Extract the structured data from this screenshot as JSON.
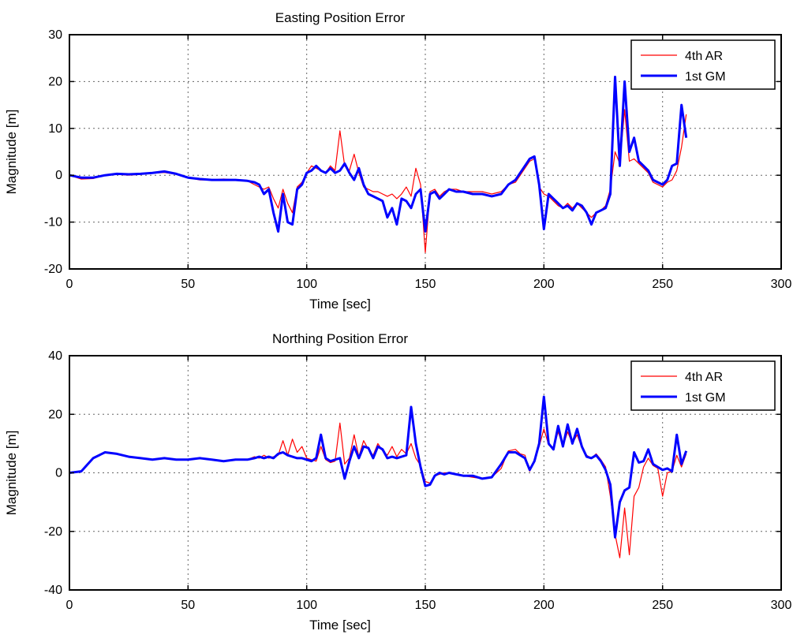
{
  "figure": {
    "background": "#ffffff"
  },
  "chart_data": [
    {
      "type": "line",
      "title": "Easting Position Error",
      "xlabel": "Time [sec]",
      "ylabel": "Magnitude [m]",
      "xlim": [
        0,
        300
      ],
      "ylim": [
        -20,
        30
      ],
      "xticks": [
        0,
        50,
        100,
        150,
        200,
        250,
        300
      ],
      "yticks": [
        -20,
        -10,
        0,
        10,
        20,
        30
      ],
      "grid": true,
      "legend_position": "top-right",
      "x": [
        0,
        5,
        10,
        15,
        20,
        25,
        30,
        35,
        40,
        45,
        50,
        55,
        60,
        65,
        70,
        75,
        78,
        80,
        82,
        84,
        86,
        88,
        90,
        92,
        94,
        96,
        98,
        100,
        102,
        104,
        106,
        108,
        110,
        112,
        114,
        116,
        118,
        120,
        122,
        124,
        126,
        128,
        130,
        132,
        134,
        136,
        138,
        140,
        142,
        144,
        146,
        148,
        150,
        152,
        154,
        156,
        158,
        160,
        163,
        166,
        170,
        174,
        178,
        182,
        185,
        188,
        190,
        192,
        194,
        196,
        198,
        200,
        202,
        204,
        206,
        208,
        210,
        212,
        214,
        216,
        218,
        220,
        222,
        224,
        226,
        228,
        230,
        232,
        234,
        236,
        238,
        240,
        242,
        244,
        246,
        248,
        250,
        252,
        254,
        256,
        258,
        260
      ],
      "series": [
        {
          "name": "4th AR",
          "color": "#ff0000",
          "width": 1.2,
          "values": [
            0,
            -0.8,
            -0.7,
            0,
            0.2,
            0,
            0.2,
            0.4,
            0.6,
            0.2,
            -0.5,
            -1,
            -1,
            -0.8,
            -1,
            -1.2,
            -2,
            -2.5,
            -3,
            -2.5,
            -5,
            -7,
            -3,
            -6,
            -8,
            -2.5,
            -1.5,
            0.5,
            2,
            1.5,
            1,
            0.5,
            2,
            1,
            9.5,
            2,
            1,
            4.5,
            0.5,
            -2.5,
            -3,
            -3.5,
            -3.5,
            -4,
            -4.5,
            -4,
            -5,
            -4,
            -2.5,
            -4.5,
            1.5,
            -2,
            -16.5,
            -3.5,
            -3,
            -4.5,
            -3.5,
            -3,
            -3,
            -3.5,
            -3.5,
            -3.5,
            -4,
            -3.5,
            -2,
            -1.5,
            0,
            1.5,
            3,
            3.5,
            -2.5,
            -4,
            -4.5,
            -5.5,
            -6.5,
            -7,
            -6,
            -7,
            -6,
            -7,
            -8,
            -9,
            -8,
            -7.5,
            -6.5,
            -3,
            5,
            2.5,
            14,
            3,
            3.5,
            2.5,
            1.5,
            0.5,
            -1.5,
            -2,
            -2.5,
            -1.5,
            -1,
            1,
            6,
            13
          ]
        },
        {
          "name": "1st GM",
          "color": "#0000ff",
          "width": 3,
          "values": [
            0,
            -0.5,
            -0.5,
            0,
            0.3,
            0.2,
            0.3,
            0.5,
            0.8,
            0.3,
            -0.5,
            -0.8,
            -1,
            -1,
            -1,
            -1.2,
            -1.5,
            -2,
            -4,
            -3,
            -8,
            -12,
            -4,
            -10,
            -10.5,
            -3,
            -2,
            0.5,
            1,
            2,
            1,
            0.5,
            1.5,
            0.5,
            1,
            2.5,
            0.5,
            -1,
            1.5,
            -2,
            -4,
            -4.5,
            -5,
            -5.5,
            -9,
            -7,
            -10.5,
            -5,
            -5.5,
            -7,
            -4,
            -3,
            -12,
            -4,
            -3.5,
            -5,
            -4,
            -3,
            -3.5,
            -3.5,
            -4,
            -4,
            -4.5,
            -4,
            -2,
            -1,
            0.5,
            2,
            3.5,
            4,
            -2,
            -11.5,
            -4,
            -5,
            -6,
            -7,
            -6.5,
            -7.5,
            -6,
            -6.5,
            -8,
            -10.5,
            -8,
            -7.5,
            -7,
            -4,
            21,
            2,
            20,
            5,
            8,
            3,
            2,
            1,
            -1,
            -1.5,
            -2,
            -1,
            2,
            2.5,
            15,
            8
          ]
        }
      ]
    },
    {
      "type": "line",
      "title": "Northing Position Error",
      "xlabel": "Time [sec]",
      "ylabel": "Magnitude [m]",
      "xlim": [
        0,
        300
      ],
      "ylim": [
        -40,
        40
      ],
      "xticks": [
        0,
        50,
        100,
        150,
        200,
        250,
        300
      ],
      "yticks": [
        -40,
        -20,
        0,
        20,
        40
      ],
      "grid": true,
      "legend_position": "top-right",
      "x": [
        0,
        5,
        10,
        15,
        20,
        25,
        30,
        35,
        40,
        45,
        50,
        55,
        60,
        65,
        70,
        75,
        78,
        80,
        82,
        84,
        86,
        88,
        90,
        92,
        94,
        96,
        98,
        100,
        102,
        104,
        106,
        108,
        110,
        112,
        114,
        116,
        118,
        120,
        122,
        124,
        126,
        128,
        130,
        132,
        134,
        136,
        138,
        140,
        142,
        144,
        146,
        148,
        150,
        152,
        154,
        156,
        158,
        160,
        163,
        166,
        170,
        174,
        178,
        182,
        185,
        188,
        190,
        192,
        194,
        196,
        198,
        200,
        202,
        204,
        206,
        208,
        210,
        212,
        214,
        216,
        218,
        220,
        222,
        224,
        226,
        228,
        230,
        232,
        234,
        236,
        238,
        240,
        242,
        244,
        246,
        248,
        250,
        252,
        254,
        256,
        258,
        260
      ],
      "series": [
        {
          "name": "4th AR",
          "color": "#ff0000",
          "width": 1.2,
          "values": [
            0,
            0.5,
            5,
            7,
            6.5,
            5.5,
            5,
            4.5,
            5,
            4.5,
            4.5,
            5,
            4.5,
            4,
            4.5,
            4.5,
            5.5,
            5,
            6,
            5,
            5.5,
            6,
            11,
            6,
            11.5,
            7,
            9,
            5,
            4.5,
            4,
            9,
            4.5,
            3.5,
            4,
            17,
            3,
            5,
            13,
            5.5,
            11,
            8,
            6,
            10,
            7.5,
            6,
            9,
            5.5,
            8,
            6.5,
            10,
            5,
            2.5,
            -3,
            -3.5,
            -1,
            -0.5,
            0,
            0,
            -0.5,
            -1,
            -1.5,
            -2,
            -1.5,
            1.5,
            7.5,
            8,
            6.5,
            6,
            0.5,
            4.5,
            9,
            15,
            9.5,
            8.5,
            14,
            9,
            14,
            10,
            13,
            8.5,
            6,
            5,
            6.5,
            4.5,
            2,
            -8,
            -21,
            -29,
            -12,
            -28,
            -8,
            -5,
            2,
            5,
            2.5,
            1.5,
            -8,
            0,
            0.5,
            6,
            2,
            6.5
          ]
        },
        {
          "name": "1st GM",
          "color": "#0000ff",
          "width": 3,
          "values": [
            0,
            0.5,
            5,
            7,
            6.5,
            5.5,
            5,
            4.5,
            5,
            4.5,
            4.5,
            5,
            4.5,
            4,
            4.5,
            4.5,
            5,
            5.5,
            5,
            5.5,
            5,
            6.5,
            7,
            6,
            5.5,
            5,
            5,
            4.5,
            4,
            5,
            13,
            5,
            4,
            4.5,
            5,
            -2,
            4,
            9,
            5,
            9,
            8.5,
            5,
            9,
            8,
            5,
            5.5,
            5,
            5.5,
            6,
            22.5,
            10,
            2,
            -4.5,
            -4,
            -1,
            0,
            -0.5,
            0,
            -0.5,
            -1,
            -1,
            -2,
            -1.5,
            3,
            7,
            7,
            6,
            5,
            1,
            4,
            10,
            26,
            10,
            8,
            16,
            9,
            16.5,
            10,
            15,
            9,
            5.5,
            5,
            6,
            4,
            1,
            -4,
            -22,
            -10,
            -6,
            -5,
            7,
            3.5,
            4,
            8,
            3,
            2,
            1,
            1.5,
            0.5,
            13,
            3,
            7.5
          ]
        }
      ]
    }
  ]
}
